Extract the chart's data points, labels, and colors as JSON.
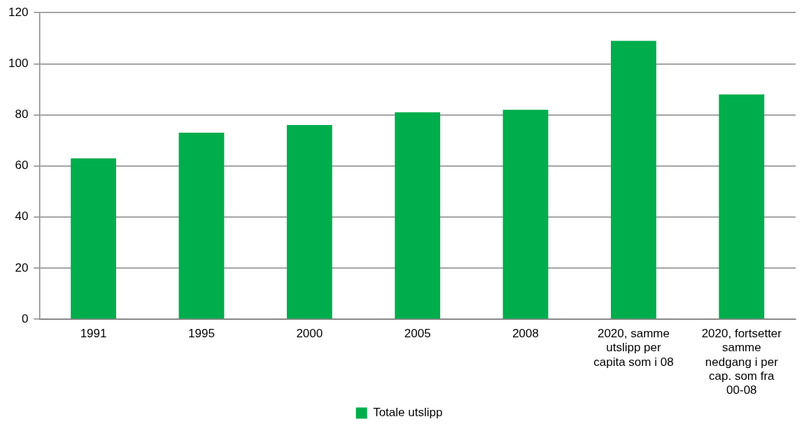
{
  "chart_data": {
    "type": "bar",
    "categories": [
      "1991",
      "1995",
      "2000",
      "2005",
      "2008",
      "2020, samme utslipp per capita som i 08",
      "2020, fortsetter samme nedgang i per cap. som fra 00-08"
    ],
    "series": [
      {
        "name": "Totale utslipp",
        "color": "#00ad4c",
        "values": [
          63,
          73,
          76,
          81,
          82,
          109,
          88
        ]
      }
    ],
    "ylim": [
      0,
      120
    ],
    "yticks": [
      0,
      20,
      40,
      60,
      80,
      100,
      120
    ],
    "grid": "y",
    "legend": "bottom"
  }
}
